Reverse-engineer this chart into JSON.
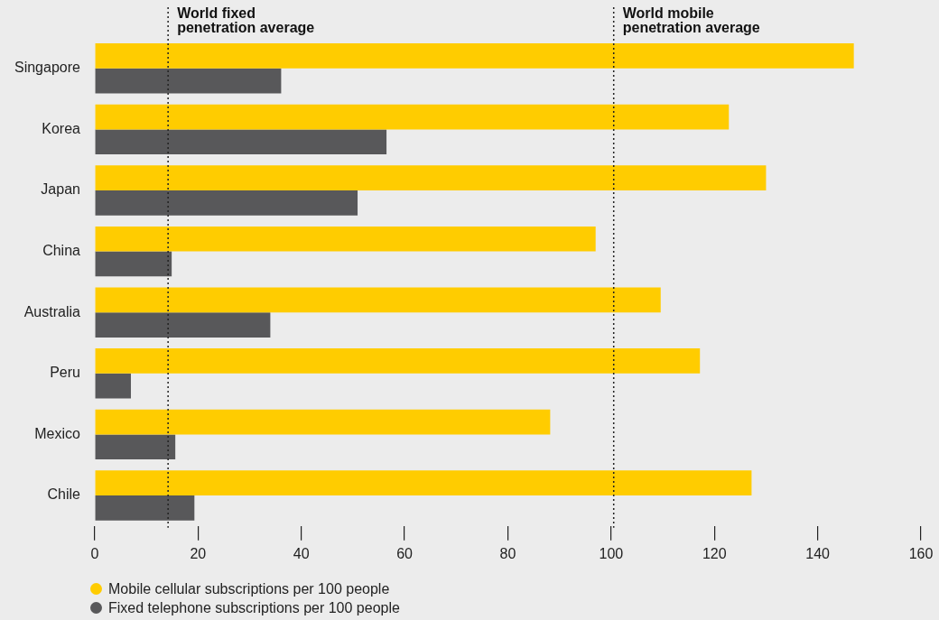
{
  "chart_data": {
    "type": "bar",
    "orientation": "horizontal",
    "categories": [
      "Singapore",
      "Korea",
      "Japan",
      "China",
      "Australia",
      "Peru",
      "Mexico",
      "Chile"
    ],
    "series": [
      {
        "name": "Mobile cellular subscriptions per 100 people",
        "color": "#ffcc00",
        "values": [
          147,
          122.8,
          130,
          97,
          109.6,
          117.2,
          88.2,
          127.2
        ]
      },
      {
        "name": "Fixed telephone subscriptions per 100 people",
        "color": "#58585a",
        "values": [
          36.1,
          56.5,
          50.9,
          14.9,
          34,
          7,
          15.6,
          19.3
        ]
      }
    ],
    "xlim": [
      0,
      160
    ],
    "xticks": [
      0,
      20,
      40,
      60,
      80,
      100,
      120,
      140,
      160
    ],
    "ref_lines": [
      {
        "axis": "x",
        "value": 14.2,
        "label": "World fixed\npenetration average",
        "line_style": "dotted",
        "color": "#222222"
      },
      {
        "axis": "x",
        "value": 100.5,
        "label": "World mobile\npenetration average",
        "line_style": "dotted",
        "color": "#222222"
      }
    ],
    "grid": false,
    "legend": "bottom left",
    "marker": "circle"
  }
}
